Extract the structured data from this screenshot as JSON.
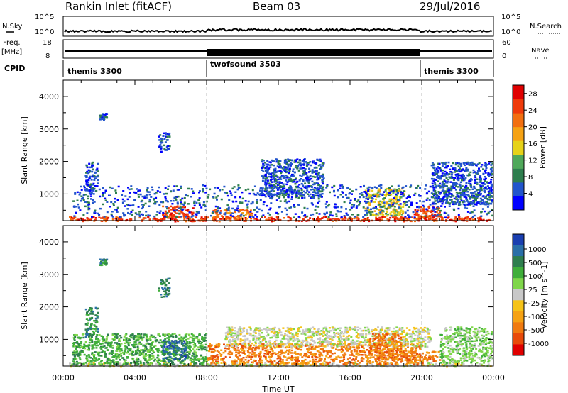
{
  "header": {
    "station": "Rankin Inlet (fitACF)",
    "beam": "Beam 03",
    "date": "29/Jul/2016"
  },
  "strip_panels": {
    "nsky": {
      "left_label": "N.Sky",
      "right_label": "N.Search",
      "left_ticks": [
        "10^5",
        "10^0"
      ],
      "right_ticks": [
        "10^5",
        "10^0"
      ],
      "note": ""
    },
    "freq": {
      "left_label_1": "Freq.",
      "left_label_2": "[MHz]",
      "right_label": "Nave",
      "left_ticks": [
        "18",
        "8"
      ],
      "right_ticks": [
        "60",
        "0"
      ]
    },
    "cpid": {
      "label": "CPID",
      "segments": [
        {
          "name": "themis 3300",
          "start_hour": 0,
          "end_hour": 8
        },
        {
          "name": "twofsound 3503",
          "start_hour": 8,
          "end_hour": 20
        },
        {
          "name": "themis 3300",
          "start_hour": 20,
          "end_hour": 24
        }
      ]
    }
  },
  "chart_data": [
    {
      "type": "heatmap",
      "quantity": "Power",
      "colorbar_label": "Power [dB]",
      "ylabel": "Slant Range [km]",
      "xlabel": "Time UT",
      "x_range_hours": [
        0,
        24
      ],
      "y_range_km": [
        180,
        4500
      ],
      "y_ticks": [
        1000,
        2000,
        3000,
        4000
      ],
      "x_ticks": [
        "00:00",
        "04:00",
        "08:00",
        "12:00",
        "16:00",
        "20:00",
        "00:00"
      ],
      "x_tick_hours": [
        0,
        4,
        8,
        12,
        16,
        20,
        24
      ],
      "dashed_vertical_lines_hours": [
        8,
        20
      ],
      "colorbar_ticks": [
        4,
        8,
        12,
        16,
        20,
        24,
        28
      ],
      "colorbar_range": [
        0,
        30
      ],
      "colorbar_colors": [
        "#0000ff",
        "#2255cc",
        "#2e7e4e",
        "#4fa85a",
        "#e6d219",
        "#f5a214",
        "#f26f10",
        "#ef3a0a",
        "#e00000"
      ],
      "scatter_regions": [
        {
          "t0": 0.3,
          "t1": 23.8,
          "r0": 180,
          "r1": 320,
          "color_index": 7
        },
        {
          "t0": 5.5,
          "t1": 7.2,
          "r0": 300,
          "r1": 650,
          "color_index": 7
        },
        {
          "t0": 8.2,
          "t1": 10.5,
          "r0": 250,
          "r1": 550,
          "color_index": 6
        },
        {
          "t0": 16.8,
          "t1": 19.0,
          "r0": 350,
          "r1": 1200,
          "color_index": 4
        },
        {
          "t0": 19.5,
          "t1": 21.0,
          "r0": 300,
          "r1": 650,
          "color_index": 7
        },
        {
          "t0": 0.5,
          "t1": 23.9,
          "r0": 300,
          "r1": 1300,
          "color_index": 1
        },
        {
          "t0": 1.2,
          "t1": 1.9,
          "r0": 1100,
          "r1": 2000,
          "color_index": 1
        },
        {
          "t0": 11.0,
          "t1": 14.5,
          "r0": 900,
          "r1": 2100,
          "color_index": 1
        },
        {
          "t0": 20.5,
          "t1": 23.9,
          "r0": 700,
          "r1": 2000,
          "color_index": 1
        },
        {
          "t0": 2.0,
          "t1": 2.4,
          "r0": 3300,
          "r1": 3500,
          "color_index": 1
        },
        {
          "t0": 5.3,
          "t1": 5.9,
          "r0": 2300,
          "r1": 2900,
          "color_index": 1
        }
      ]
    },
    {
      "type": "heatmap",
      "quantity": "Velocity",
      "colorbar_label": "Velocity [m s^-1]",
      "ylabel": "Slant Range [km]",
      "xlabel": "Time UT",
      "x_range_hours": [
        0,
        24
      ],
      "y_range_km": [
        180,
        4500
      ],
      "y_ticks": [
        1000,
        2000,
        3000,
        4000
      ],
      "x_ticks": [
        "00:00",
        "04:00",
        "08:00",
        "12:00",
        "16:00",
        "20:00",
        "00:00"
      ],
      "x_tick_hours": [
        0,
        4,
        8,
        12,
        16,
        20,
        24
      ],
      "dashed_vertical_lines_hours": [
        8,
        20
      ],
      "colorbar_ticks": [
        "1000",
        "500",
        "100",
        "25",
        "-25",
        "-100",
        "-500",
        "-1000"
      ],
      "colorbar_colors": [
        "#1a3fb0",
        "#2a6fa8",
        "#2e7e4e",
        "#3fae3a",
        "#7fd64a",
        "#c8c8c8",
        "#f5c318",
        "#f5a214",
        "#f07a10",
        "#e84a0a",
        "#e00000"
      ],
      "scatter_regions": [
        {
          "t0": 0.3,
          "t1": 23.8,
          "r0": 180,
          "r1": 300,
          "color_index": 5
        },
        {
          "t0": 0.5,
          "t1": 8.0,
          "r0": 250,
          "r1": 1200,
          "color_index": 3
        },
        {
          "t0": 1.2,
          "t1": 1.9,
          "r0": 1100,
          "r1": 2000,
          "color_index": 2
        },
        {
          "t0": 5.5,
          "t1": 6.8,
          "r0": 300,
          "r1": 1000,
          "color_index": 1
        },
        {
          "t0": 8.0,
          "t1": 20.0,
          "r0": 250,
          "r1": 900,
          "color_index": 8
        },
        {
          "t0": 9.0,
          "t1": 20.5,
          "r0": 800,
          "r1": 1400,
          "color_index": 5
        },
        {
          "t0": 17.0,
          "t1": 18.8,
          "r0": 400,
          "r1": 1200,
          "color_index": 8
        },
        {
          "t0": 18.8,
          "t1": 21.0,
          "r0": 350,
          "r1": 650,
          "color_index": 8
        },
        {
          "t0": 21.0,
          "t1": 23.9,
          "r0": 300,
          "r1": 1400,
          "color_index": 4
        },
        {
          "t0": 2.0,
          "t1": 2.4,
          "r0": 3300,
          "r1": 3500,
          "color_index": 2
        },
        {
          "t0": 5.3,
          "t1": 5.9,
          "r0": 2300,
          "r1": 2900,
          "color_index": 2
        }
      ]
    }
  ]
}
